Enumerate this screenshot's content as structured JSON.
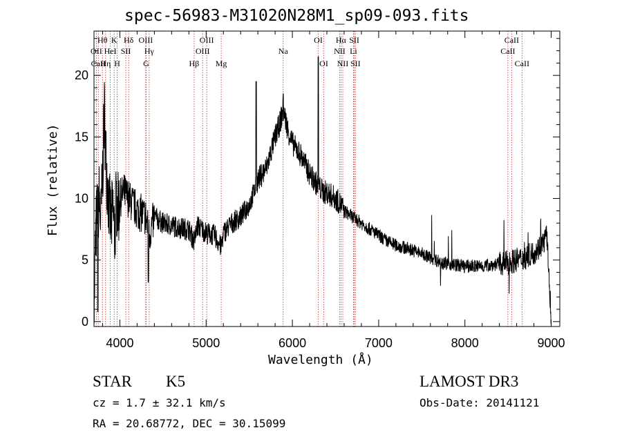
{
  "chart_data": {
    "type": "line",
    "title": "spec-56983-M31020N28M1_sp09-093.fits",
    "xlabel": "Wavelength (Å)",
    "ylabel": "Flux (relative)",
    "xlim": [
      3700,
      9100
    ],
    "ylim": [
      -0.4,
      23.6
    ],
    "xticks": [
      4000,
      5000,
      6000,
      7000,
      8000,
      9000
    ],
    "yticks": [
      0,
      5,
      10,
      15,
      20
    ],
    "grid": false,
    "series": [
      {
        "name": "spectrum",
        "x": [
          3700,
          3720,
          3740,
          3760,
          3780,
          3800,
          3820,
          3840,
          3860,
          3880,
          3900,
          3920,
          3940,
          3960,
          3980,
          4000,
          4050,
          4100,
          4150,
          4200,
          4250,
          4300,
          4340,
          4400,
          4500,
          4600,
          4700,
          4800,
          4861,
          4900,
          5000,
          5100,
          5175,
          5200,
          5300,
          5400,
          5500,
          5580,
          5600,
          5700,
          5800,
          5850,
          5893,
          5950,
          6000,
          6100,
          6200,
          6250,
          6300,
          6364,
          6400,
          6500,
          6563,
          6600,
          6700,
          6800,
          6900,
          7000,
          7100,
          7200,
          7300,
          7400,
          7500,
          7600,
          7700,
          7800,
          7900,
          8000,
          8100,
          8200,
          8300,
          8400,
          8500,
          8600,
          8700,
          8800,
          8900,
          8950,
          9000
        ],
        "y": [
          0.5,
          7,
          9,
          10,
          8,
          12,
          17,
          13,
          11,
          9,
          8,
          9,
          7,
          10,
          9,
          10,
          10.5,
          10,
          9.5,
          9,
          8.8,
          8.5,
          7,
          8.5,
          8,
          7.8,
          7.6,
          7.5,
          6.5,
          7.8,
          7.2,
          7,
          6,
          7.2,
          8,
          8.5,
          9.5,
          11,
          11.5,
          12.5,
          15,
          16,
          17.2,
          15.5,
          14.5,
          13.5,
          12,
          11.5,
          11,
          10.5,
          10.5,
          10,
          9.5,
          9,
          8.5,
          8,
          7.5,
          7,
          6.5,
          6.2,
          6,
          5.8,
          5.5,
          5.2,
          4.9,
          4.7,
          4.6,
          4.5,
          4.5,
          4.5,
          4.6,
          4.7,
          4.8,
          5,
          5.2,
          5.6,
          6.3,
          7,
          0.2
        ]
      }
    ],
    "lines": [
      {
        "label": "Hθ",
        "wave": 3798,
        "row": 1
      },
      {
        "label": "OII",
        "wave": 3727,
        "row": 2
      },
      {
        "label": "CaII",
        "wave": 3750,
        "row": 3
      },
      {
        "label": "Hη",
        "wave": 3835,
        "row": 3
      },
      {
        "label": "HeI",
        "wave": 3889,
        "row": 2
      },
      {
        "label": "K",
        "wave": 3934,
        "row": 1
      },
      {
        "label": "H",
        "wave": 3969,
        "row": 3
      },
      {
        "label": "SII",
        "wave": 4069,
        "row": 2
      },
      {
        "label": "Hδ",
        "wave": 4102,
        "row": 1
      },
      {
        "label": "OIII",
        "wave": 4300,
        "row": 1
      },
      {
        "label": "Hγ",
        "wave": 4340,
        "row": 2
      },
      {
        "label": "G",
        "wave": 4305,
        "row": 3
      },
      {
        "label": "Hβ",
        "wave": 4861,
        "row": 3
      },
      {
        "label": "OIII",
        "wave": 4959,
        "row": 2
      },
      {
        "label": "OIII",
        "wave": 5007,
        "row": 1
      },
      {
        "label": "Mg",
        "wave": 5175,
        "row": 3
      },
      {
        "label": "Na",
        "wave": 5893,
        "row": 2
      },
      {
        "label": "OI",
        "wave": 6300,
        "row": 1
      },
      {
        "label": "OI",
        "wave": 6364,
        "row": 3
      },
      {
        "label": "Hα",
        "wave": 6563,
        "row": 1
      },
      {
        "label": "NII",
        "wave": 6548,
        "row": 2
      },
      {
        "label": "NII",
        "wave": 6584,
        "row": 3
      },
      {
        "label": "SII",
        "wave": 6717,
        "row": 1
      },
      {
        "label": "Li",
        "wave": 6708,
        "row": 2
      },
      {
        "label": "SII",
        "wave": 6731,
        "row": 3
      },
      {
        "label": "CaII",
        "wave": 8542,
        "row": 1
      },
      {
        "label": "CaII",
        "wave": 8498,
        "row": 2
      },
      {
        "label": "CaII",
        "wave": 8662,
        "row": 3
      }
    ]
  },
  "info": {
    "object_class": "STAR",
    "subclass": "K5",
    "survey": "LAMOST DR3",
    "redshift_line": "cz = 1.7 ± 32.1 km/s",
    "obs_date": "Obs-Date: 20141121",
    "coords": "RA =  20.68772, DEC =  30.15099"
  }
}
